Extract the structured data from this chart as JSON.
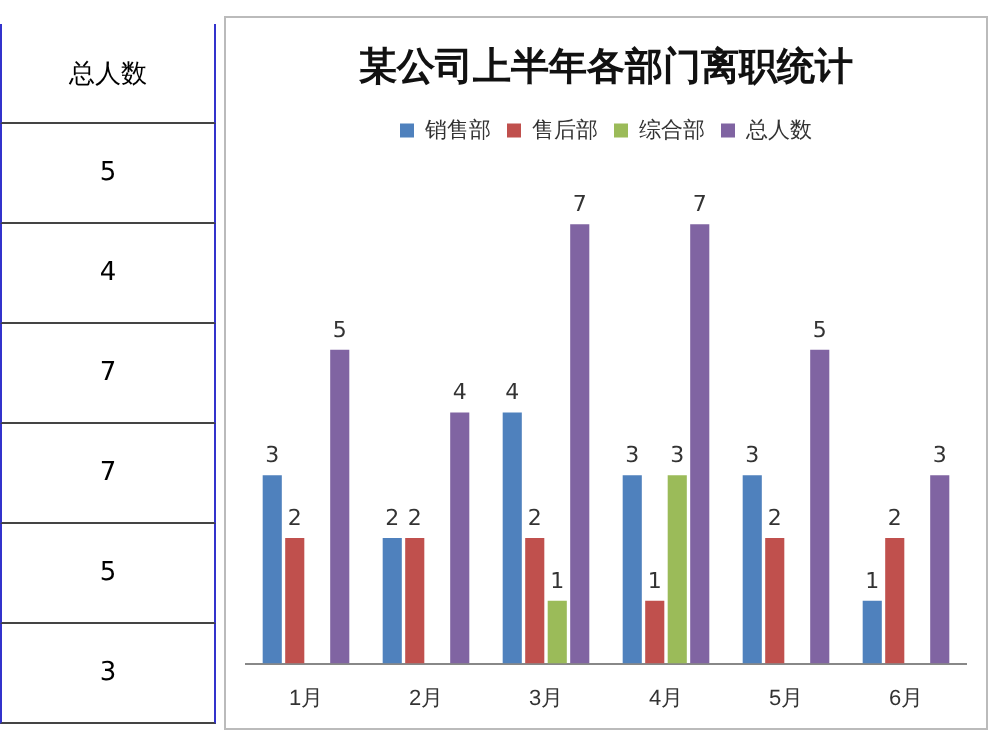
{
  "chart_data": {
    "type": "bar",
    "title": "某公司上半年各部门离职统计",
    "categories": [
      "1月",
      "2月",
      "3月",
      "4月",
      "5月",
      "6月"
    ],
    "series": [
      {
        "name": "销售部",
        "color": "#4f81bd",
        "values": [
          3,
          2,
          4,
          3,
          3,
          1
        ]
      },
      {
        "name": "售后部",
        "color": "#c0504d",
        "values": [
          2,
          2,
          2,
          1,
          2,
          2
        ]
      },
      {
        "name": "综合部",
        "color": "#9bbb59",
        "values": [
          null,
          null,
          1,
          3,
          null,
          null
        ]
      },
      {
        "name": "总人数",
        "color": "#8064a2",
        "values": [
          5,
          4,
          7,
          7,
          5,
          3
        ]
      }
    ],
    "data_labels": true,
    "legend": "top",
    "grid": false,
    "tick_labels": "x",
    "annotations": [
      "总人数",
      "5",
      "4",
      "7",
      "7",
      "5",
      "3"
    ]
  }
}
